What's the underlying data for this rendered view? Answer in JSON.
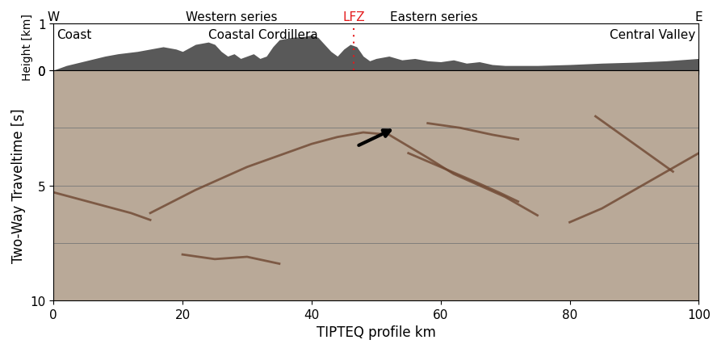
{
  "chart_data": [
    {
      "type": "area",
      "ylabel": "Height [km]",
      "x": [
        0,
        2,
        5,
        8,
        10,
        13,
        15,
        17,
        19,
        20,
        22,
        24,
        25,
        26,
        27,
        28,
        29,
        30,
        31,
        32,
        33,
        34,
        35,
        37,
        39,
        40,
        41,
        42,
        43,
        44,
        45,
        46,
        47,
        48,
        49,
        50,
        52,
        54,
        56,
        58,
        60,
        62,
        64,
        66,
        68,
        70,
        75,
        80,
        85,
        90,
        95,
        100
      ],
      "values": [
        0.0,
        0.1,
        0.2,
        0.3,
        0.35,
        0.4,
        0.45,
        0.5,
        0.45,
        0.4,
        0.55,
        0.6,
        0.55,
        0.4,
        0.3,
        0.35,
        0.25,
        0.3,
        0.35,
        0.25,
        0.3,
        0.5,
        0.65,
        0.7,
        0.72,
        0.75,
        0.7,
        0.55,
        0.4,
        0.3,
        0.45,
        0.55,
        0.5,
        0.3,
        0.2,
        0.25,
        0.3,
        0.22,
        0.25,
        0.2,
        0.18,
        0.22,
        0.15,
        0.18,
        0.12,
        0.1,
        0.1,
        0.12,
        0.15,
        0.17,
        0.2,
        0.25
      ],
      "color": "#595959",
      "xlim": [
        0,
        100
      ],
      "ylim": [
        0,
        1
      ],
      "xticks": [
        0,
        20,
        40,
        60,
        80,
        100
      ],
      "yticks": [
        0,
        1
      ],
      "tick_labels": "y",
      "header": {
        "west": "W",
        "western": "Western series",
        "fault": "LFZ",
        "eastern": "Eastern series",
        "east": "E"
      },
      "fault_x": 46.5,
      "fault_color": "#e41a1c",
      "region_labels": [
        "Coast",
        "Coastal Cordillera",
        "Central Valley"
      ]
    },
    {
      "type": "image",
      "xlabel": "TIPTEQ profile km",
      "ylabel": "Two-Way Traveltime [s]",
      "xlim": [
        0,
        100
      ],
      "ylim": [
        10,
        0
      ],
      "xticks": [
        0,
        20,
        40,
        60,
        80,
        100
      ],
      "yticks": [
        0,
        5,
        10
      ],
      "grid_lines": [
        2.5,
        5,
        7.5
      ],
      "color": "#b9a998",
      "reflector_color": "#6e4630",
      "reflectors": [
        {
          "x": [
            15,
            22,
            30,
            36,
            40,
            44,
            48,
            52,
            55,
            58,
            62,
            66,
            70,
            75
          ],
          "values": [
            6.2,
            5.2,
            4.2,
            3.6,
            3.2,
            2.9,
            2.7,
            2.8,
            3.3,
            3.8,
            4.5,
            5.0,
            5.5,
            6.3
          ]
        },
        {
          "x": [
            0,
            4,
            8,
            12,
            15
          ],
          "values": [
            5.3,
            5.6,
            5.9,
            6.2,
            6.5
          ]
        },
        {
          "x": [
            55,
            60,
            65,
            69,
            72
          ],
          "values": [
            3.6,
            4.2,
            4.8,
            5.3,
            5.7
          ]
        },
        {
          "x": [
            80,
            85,
            90,
            95,
            100
          ],
          "values": [
            6.6,
            6.0,
            5.2,
            4.4,
            3.6
          ]
        },
        {
          "x": [
            84,
            88,
            92,
            96
          ],
          "values": [
            2.0,
            2.8,
            3.6,
            4.4
          ]
        },
        {
          "x": [
            58,
            63,
            68,
            72
          ],
          "values": [
            2.3,
            2.5,
            2.8,
            3.0
          ]
        },
        {
          "x": [
            20,
            25,
            30,
            35
          ],
          "values": [
            8.0,
            8.2,
            8.1,
            8.4
          ]
        }
      ],
      "arrow_tail": [
        47,
        3.3
      ],
      "arrow_tip": [
        53,
        2.5
      ]
    }
  ]
}
